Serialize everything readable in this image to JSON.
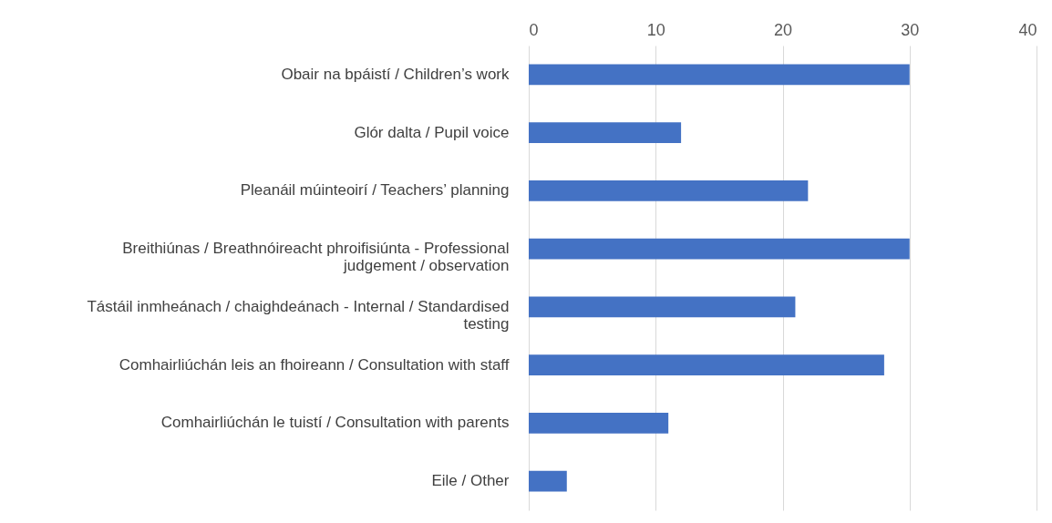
{
  "chart_data": {
    "type": "bar",
    "orientation": "horizontal",
    "categories": [
      "Obair na bpáistí / Children’s work",
      "Glór dalta / Pupil voice",
      "Pleanáil múinteoirí / Teachers’ planning",
      "Breithiúnas / Breathnóireacht phroifisiúnta - Professional judgement / observation",
      "Tástáil inmheánach / chaighdeánach - Internal / Standardised testing",
      "Comhairliúchán leis an fhoireann / Consultation with staff",
      "Comhairliúchán le tuistí / Consultation with parents",
      "Eile / Other"
    ],
    "values": [
      30,
      12,
      22,
      30,
      21,
      28,
      11,
      3
    ],
    "color": "#4472c4",
    "xlim": [
      0,
      40
    ],
    "xticks": [
      0,
      10,
      20,
      30,
      40
    ],
    "grid": "x"
  }
}
